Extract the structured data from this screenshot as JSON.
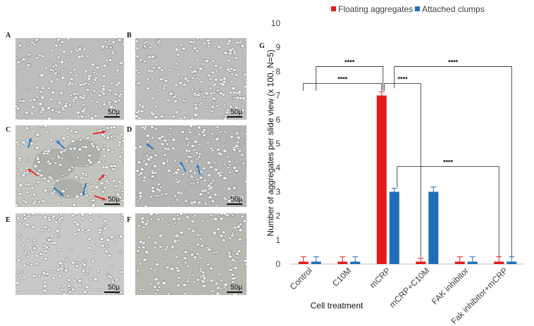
{
  "panels": [
    {
      "id": "A",
      "label": "A",
      "scale": "50µ",
      "bg": "#bdbdbd",
      "style": "uniform",
      "arrows": []
    },
    {
      "id": "B",
      "label": "B",
      "scale": "50µ",
      "bg": "#bdbdbd",
      "style": "uniform",
      "arrows": []
    },
    {
      "id": "C",
      "label": "C",
      "scale": "50µ",
      "bg": "#c4c4bf",
      "style": "clumped",
      "arrows": [
        "blue",
        "red",
        "red",
        "blue",
        "blue",
        "red",
        "red",
        "blue"
      ]
    },
    {
      "id": "D",
      "label": "D",
      "scale": "50µ",
      "bg": "#b4b4b4",
      "style": "uniform",
      "arrows": [
        "blue",
        "blue",
        "blue"
      ]
    },
    {
      "id": "E",
      "label": "E",
      "scale": "50µ",
      "bg": "#c8c8c8",
      "style": "sparse",
      "arrows": []
    },
    {
      "id": "F",
      "label": "F",
      "scale": "50µ",
      "bg": "#b8b8b2",
      "style": "sparse",
      "arrows": []
    }
  ],
  "colors": {
    "floating": "#e31a1c",
    "attached": "#1f6fb8",
    "arrow_red": "#e8231e",
    "arrow_blue": "#1f78c8"
  },
  "chart_data": {
    "type": "bar",
    "panel_label": "G",
    "categories": [
      "Control",
      "C10M",
      "mCRP",
      "mCRP+C10M",
      "FAK inhibitor",
      "Fak inhibitor+mCRP"
    ],
    "series": [
      {
        "name": "Floating aggregates",
        "values": [
          0.1,
          0.1,
          7.0,
          0.1,
          0.1,
          0.1
        ],
        "errors": [
          0.2,
          0.2,
          0.15,
          0.15,
          0.2,
          0.2
        ]
      },
      {
        "name": "Attached clumps",
        "values": [
          0.1,
          0.1,
          3.0,
          3.0,
          0.1,
          0.1
        ],
        "errors": [
          0.2,
          0.2,
          0.15,
          0.2,
          0.2,
          0.2
        ]
      }
    ],
    "xlabel": "Cell treatment",
    "ylabel": "Number of aggregates per slide view (x 100, N=5)",
    "ylim": [
      0,
      10
    ],
    "yticks": [
      0,
      1,
      2,
      3,
      4,
      5,
      6,
      7,
      8,
      9,
      10
    ],
    "legend_position": "top",
    "significance": [
      {
        "label": "****",
        "from": "Control",
        "to": "mCRP",
        "level": 7.5
      },
      {
        "label": "****",
        "from": "Control",
        "to": "mCRP",
        "level": 8.2
      },
      {
        "label": "****",
        "from": "mCRP",
        "to": "mCRP+C10M",
        "level": 7.5
      },
      {
        "label": "****",
        "from": "mCRP",
        "to": "Fak inhibitor+mCRP",
        "level": 8.2
      },
      {
        "label": "****",
        "from": "mCRP",
        "to": "Fak inhibitor+mCRP",
        "level": 4.05
      }
    ]
  }
}
